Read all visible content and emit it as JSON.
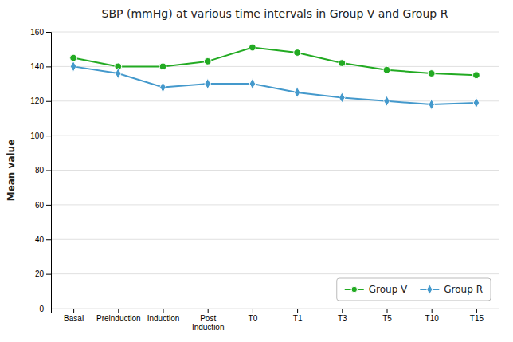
{
  "chart_data": {
    "type": "line",
    "title": "SBP (mmHg) at various time intervals in Group V and Group R",
    "y_label": "Mean value",
    "categories": [
      "Basal",
      "Preinduction",
      "Induction",
      "Post\nInduction",
      "T0",
      "T1",
      "T3",
      "T5",
      "T10",
      "T15"
    ],
    "series": [
      {
        "name": "Group V",
        "color": "#22aa22",
        "marker": "circle",
        "values": [
          145,
          140,
          140,
          143,
          151,
          148,
          142,
          138,
          136,
          135
        ]
      },
      {
        "name": "Group R",
        "color": "#4499cc",
        "marker": "diamond",
        "values": [
          140,
          136,
          128,
          130,
          130,
          125,
          122,
          120,
          118,
          119
        ]
      }
    ],
    "ylim": [
      0,
      160
    ],
    "yticks": [
      0,
      20,
      40,
      60,
      80,
      100,
      120,
      140,
      160
    ],
    "grid": true,
    "legend": "lower right"
  }
}
